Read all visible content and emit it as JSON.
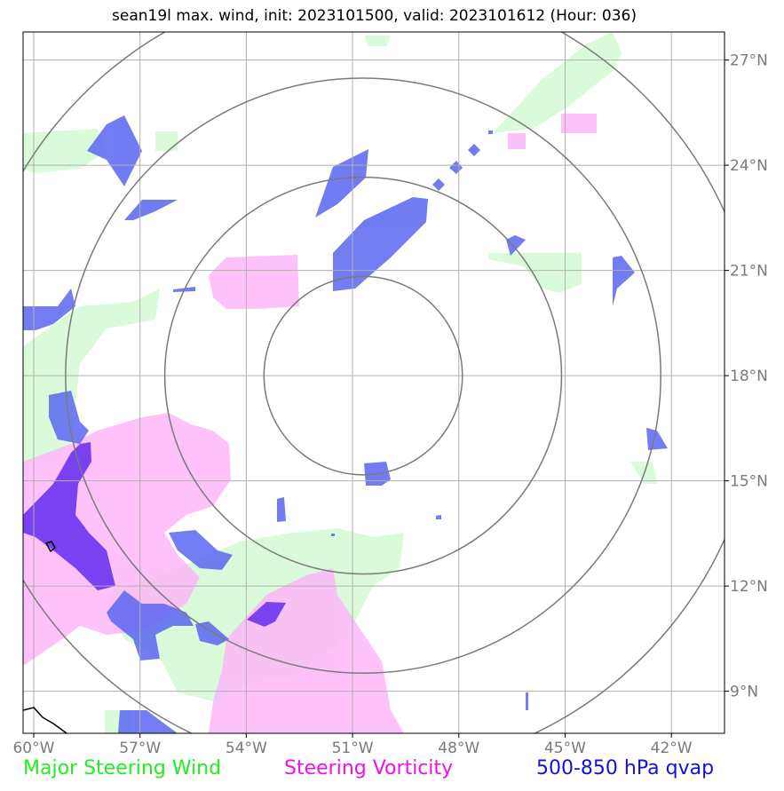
{
  "title": "sean19l max. wind, init: 2023101500, valid: 2023101612 (Hour: 036)",
  "map": {
    "lon_range": [
      -60.3,
      -40.5
    ],
    "lat_range": [
      7.8,
      27.8
    ],
    "lon_ticks": [
      {
        "value": -60,
        "label": "60°W"
      },
      {
        "value": -57,
        "label": "57°W"
      },
      {
        "value": -54,
        "label": "54°W"
      },
      {
        "value": -51,
        "label": "51°W"
      },
      {
        "value": -48,
        "label": "48°W"
      },
      {
        "value": -45,
        "label": "45°W"
      },
      {
        "value": -42,
        "label": "42°W"
      }
    ],
    "lat_ticks": [
      {
        "value": 9,
        "label": "9°N"
      },
      {
        "value": 12,
        "label": "12°N"
      },
      {
        "value": 15,
        "label": "15°N"
      },
      {
        "value": 18,
        "label": "18°N"
      },
      {
        "value": 21,
        "label": "21°N"
      },
      {
        "value": 24,
        "label": "24°N"
      },
      {
        "value": 27,
        "label": "27°N"
      }
    ],
    "center": {
      "lon": -50.7,
      "lat": 18.0
    },
    "ring_radii_deg": [
      2.8,
      5.6,
      8.4,
      11.2
    ],
    "colors": {
      "wind": "#d9fbd9",
      "vorticity": "#fcbbf8",
      "qvap": "#5a66f0",
      "qvap_dark": "#6a33ee",
      "rings": "#7a7a7a",
      "grid": "#b0b0b0",
      "coast": "#000000"
    }
  },
  "legend": {
    "wind": "Major Steering Wind",
    "vorticity": "Steering Vorticity",
    "qvap": "500-850 hPa qvap"
  }
}
